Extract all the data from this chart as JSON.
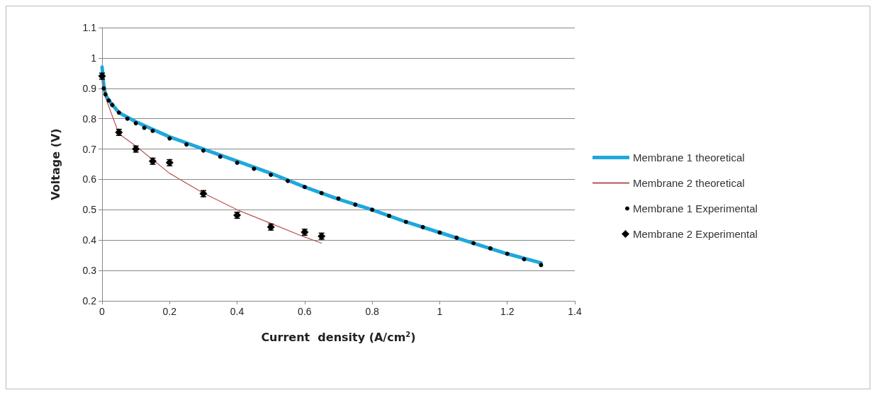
{
  "chart_data": {
    "type": "line",
    "xlabel": "Current  density (A/cm$^{2}$)",
    "ylabel": "Voltage (V)",
    "xlim": [
      0,
      1.4
    ],
    "xticks": [
      0,
      0.2,
      0.4,
      0.6,
      0.8,
      1,
      1.2,
      1.4
    ],
    "ylim": [
      0.2,
      1.1
    ],
    "yticks": [
      0.2,
      0.3,
      0.4,
      0.5,
      0.6,
      0.7,
      0.8,
      0.9,
      1,
      1.1
    ],
    "grid": "y",
    "legend": "right",
    "series": [
      {
        "name": "Membrane 1 theoretical",
        "color": "#1fa8dc",
        "marker": "none",
        "x": [
          0,
          0.005,
          0.01,
          0.02,
          0.05,
          0.1,
          0.15,
          0.2,
          0.3,
          0.4,
          0.5,
          0.6,
          0.7,
          0.8,
          0.9,
          1.0,
          1.1,
          1.2,
          1.3
        ],
        "values": [
          0.97,
          0.91,
          0.88,
          0.86,
          0.82,
          0.79,
          0.765,
          0.74,
          0.7,
          0.66,
          0.62,
          0.575,
          0.535,
          0.5,
          0.46,
          0.425,
          0.39,
          0.355,
          0.325
        ]
      },
      {
        "name": "Membrane 2 theoretical",
        "color": "#b85450",
        "marker": "none",
        "x": [
          0,
          0.01,
          0.02,
          0.05,
          0.1,
          0.2,
          0.3,
          0.4,
          0.5,
          0.6,
          0.65
        ],
        "values": [
          0.94,
          0.87,
          0.84,
          0.75,
          0.71,
          0.62,
          0.555,
          0.5,
          0.455,
          0.41,
          0.39
        ]
      },
      {
        "name": "Membrane 1 Experimental",
        "type": "scatter",
        "color": "#000000",
        "marker": "circle",
        "x": [
          0.005,
          0.01,
          0.02,
          0.03,
          0.05,
          0.075,
          0.1,
          0.125,
          0.15,
          0.2,
          0.25,
          0.3,
          0.35,
          0.4,
          0.45,
          0.5,
          0.55,
          0.6,
          0.65,
          0.7,
          0.75,
          0.8,
          0.85,
          0.9,
          0.95,
          1.0,
          1.05,
          1.1,
          1.15,
          1.2,
          1.25,
          1.3
        ],
        "values": [
          0.9,
          0.88,
          0.86,
          0.845,
          0.82,
          0.8,
          0.785,
          0.77,
          0.76,
          0.735,
          0.715,
          0.695,
          0.675,
          0.655,
          0.635,
          0.615,
          0.595,
          0.575,
          0.555,
          0.537,
          0.517,
          0.5,
          0.48,
          0.46,
          0.443,
          0.425,
          0.408,
          0.39,
          0.373,
          0.355,
          0.337,
          0.318
        ]
      },
      {
        "name": "Membrane 2 Experimental",
        "type": "scatter",
        "color": "#000000",
        "marker": "diamond",
        "x": [
          0,
          0.05,
          0.1,
          0.15,
          0.2,
          0.3,
          0.4,
          0.5,
          0.6,
          0.65
        ],
        "values": [
          0.94,
          0.755,
          0.7,
          0.66,
          0.655,
          0.553,
          0.482,
          0.443,
          0.426,
          0.413
        ],
        "errors": [
          0.01,
          0.01,
          0.01,
          0.01,
          0.01,
          0.01,
          0.01,
          0.01,
          0.01,
          0.01
        ]
      }
    ]
  }
}
